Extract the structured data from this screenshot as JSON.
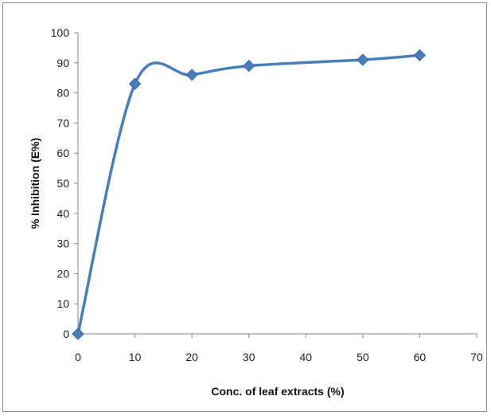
{
  "chart_data": {
    "type": "line",
    "title": "",
    "xlabel": "Conc. of leaf extracts (%)",
    "ylabel": "% Inhibition (E%)",
    "xlim": [
      0,
      70
    ],
    "ylim": [
      0,
      100
    ],
    "x_ticks": [
      "0",
      "10",
      "20",
      "30",
      "40",
      "50",
      "60",
      "70"
    ],
    "y_ticks": [
      "0",
      "10",
      "20",
      "30",
      "40",
      "50",
      "60",
      "70",
      "80",
      "90",
      "100"
    ],
    "grid": false,
    "legend": "none",
    "smoothed": true,
    "marker": "diamond",
    "series": [
      {
        "x": [
          0,
          10,
          20,
          30,
          50,
          60
        ],
        "values": [
          0,
          83,
          86,
          89,
          91,
          92.5
        ],
        "color": "#4a7ebb"
      }
    ]
  }
}
